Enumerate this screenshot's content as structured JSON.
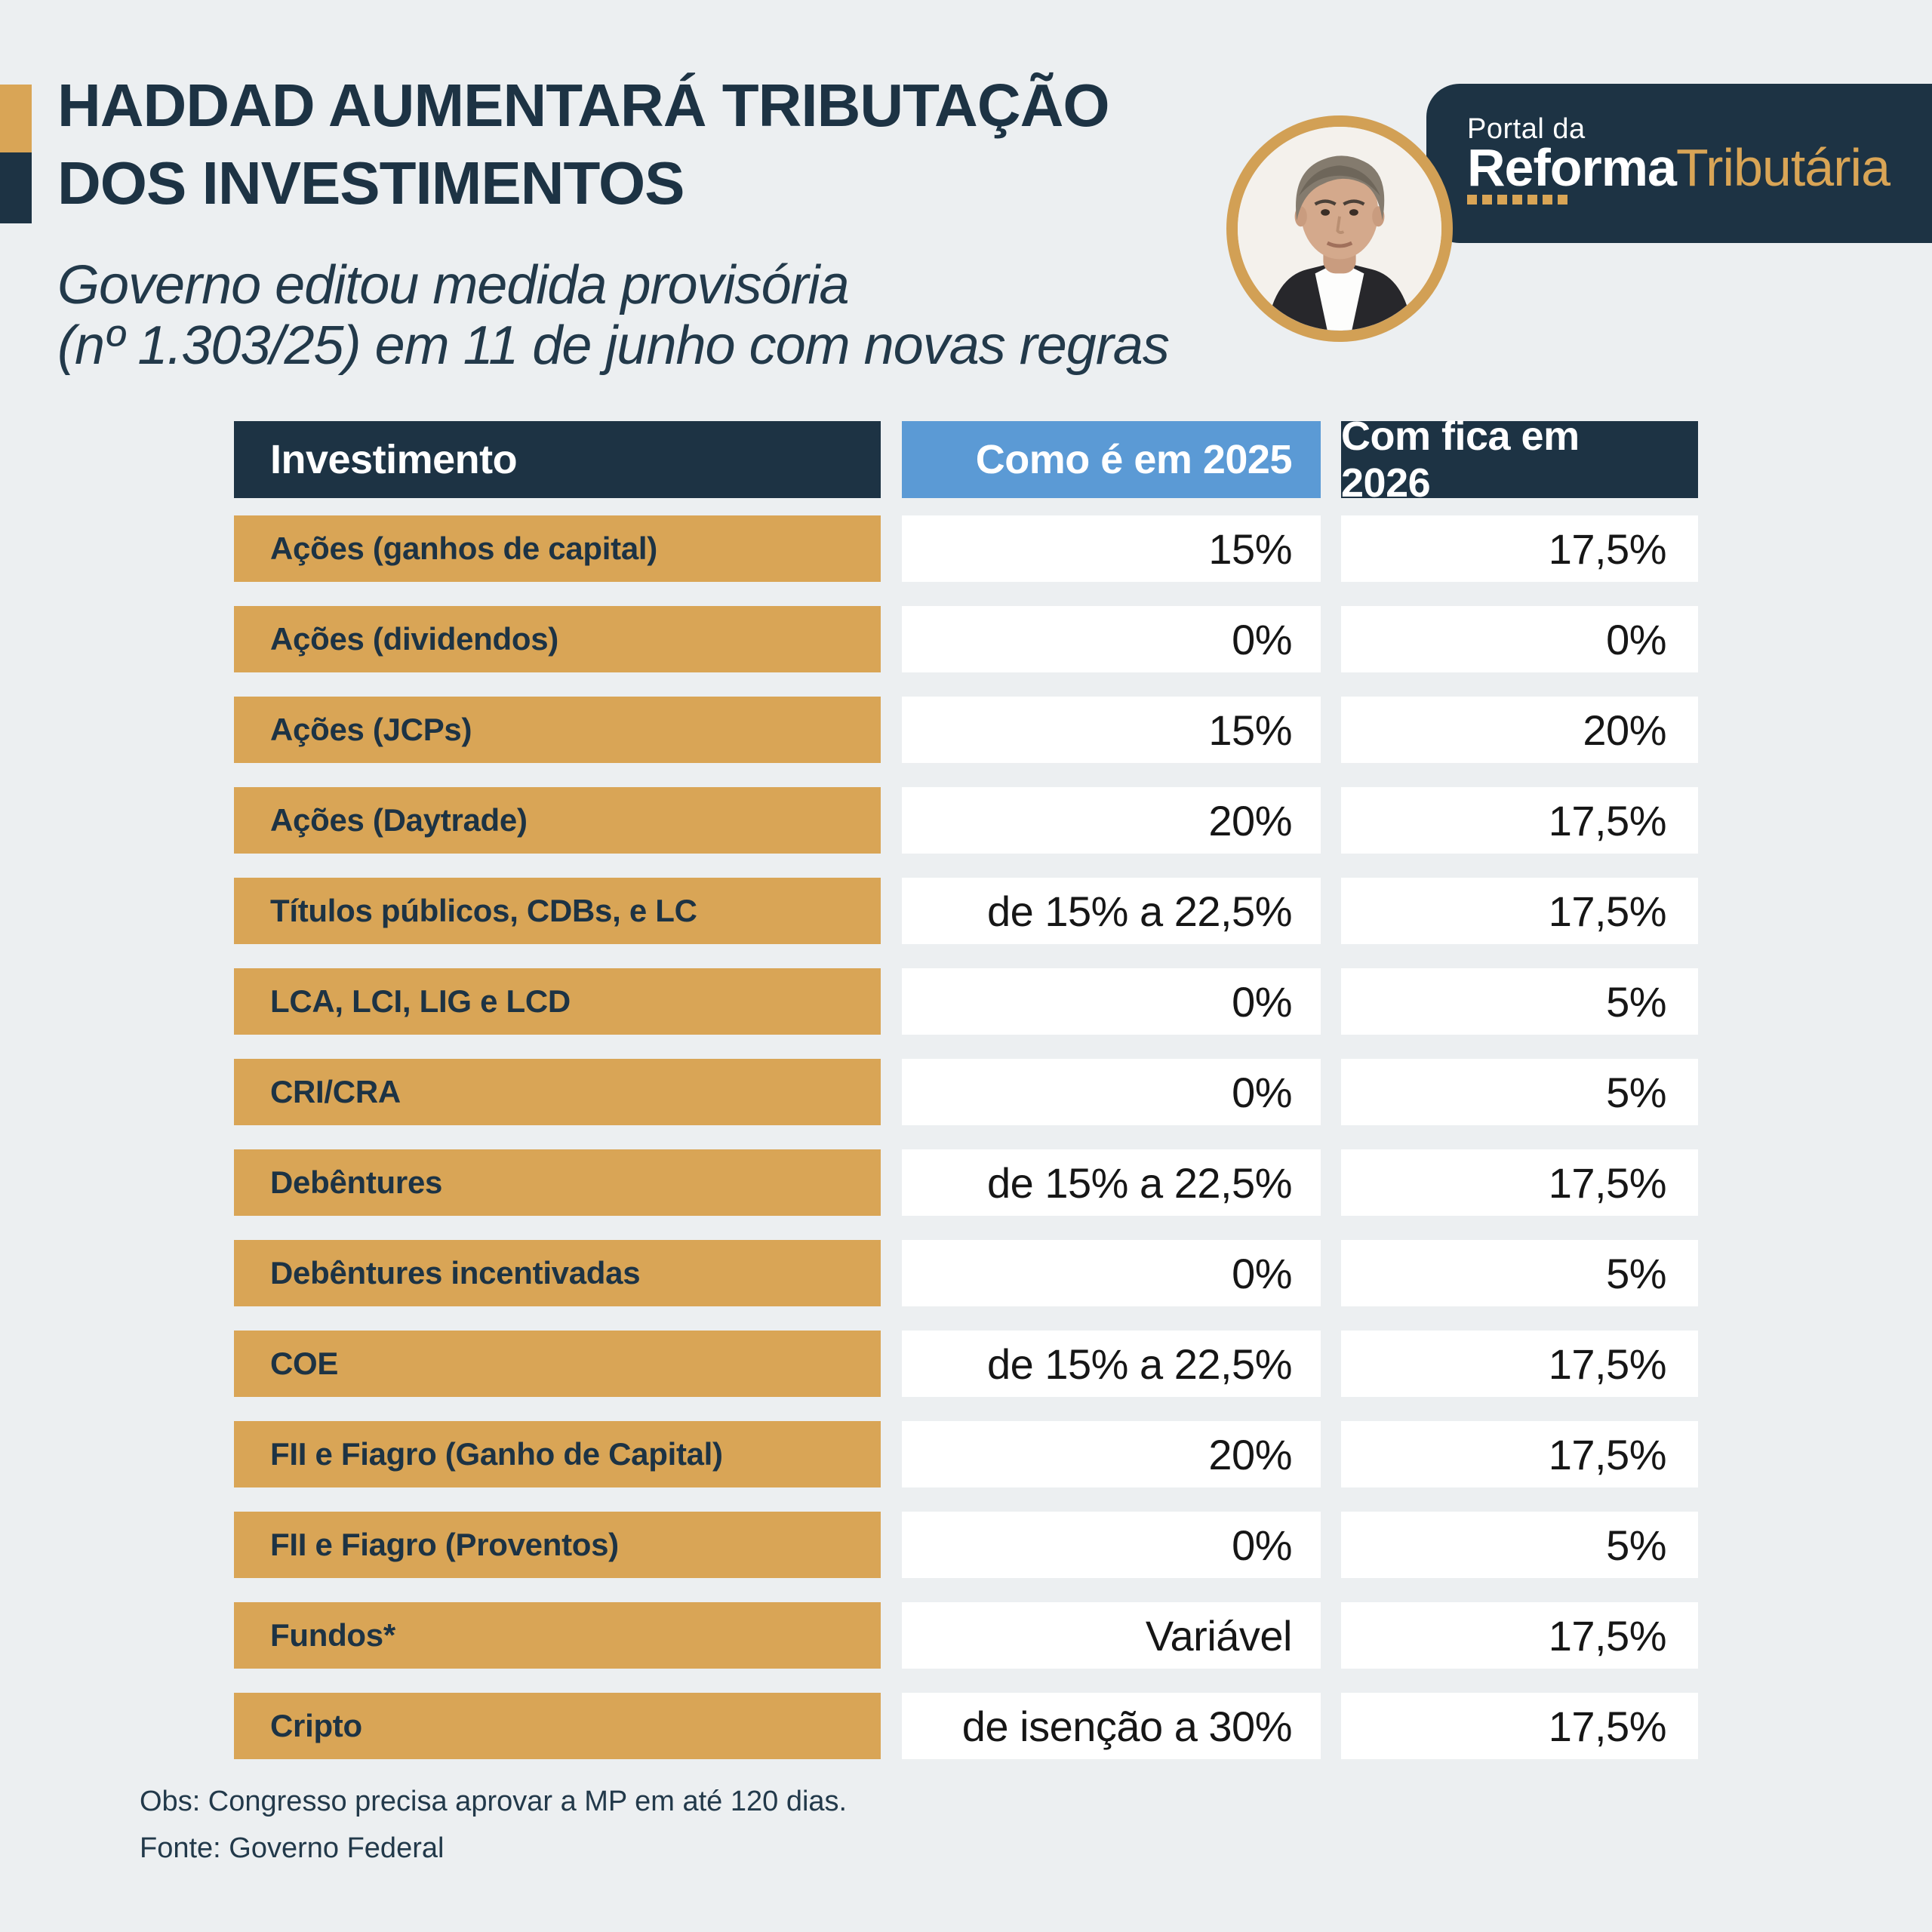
{
  "header": {
    "title_line1": "HADDAD AUMENTARÁ TRIBUTAÇÃO",
    "title_line2": "DOS INVESTIMENTOS",
    "subtitle_line1": "Governo editou medida provisória",
    "subtitle_line2": "(nº 1.303/25) em 11 de junho com novas regras"
  },
  "brand": {
    "kicker": "Portal da",
    "name_primary": "Reforma",
    "name_secondary": "Tributária",
    "portrait_icon": "haddad-portrait-photo"
  },
  "table": {
    "columns": [
      {
        "label": "Investimento"
      },
      {
        "label": "Como é em 2025"
      },
      {
        "label": "Com fica em 2026"
      }
    ],
    "rows": [
      {
        "investment": "Ações (ganhos de capital)",
        "y2025": "15%",
        "y2026": "17,5%"
      },
      {
        "investment": "Ações (dividendos)",
        "y2025": "0%",
        "y2026": "0%"
      },
      {
        "investment": "Ações (JCPs)",
        "y2025": "15%",
        "y2026": "20%"
      },
      {
        "investment": "Ações (Daytrade)",
        "y2025": "20%",
        "y2026": "17,5%"
      },
      {
        "investment": "Títulos públicos, CDBs, e LC",
        "y2025": "de 15% a 22,5%",
        "y2026": "17,5%"
      },
      {
        "investment": "LCA, LCI, LIG e LCD",
        "y2025": "0%",
        "y2026": "5%"
      },
      {
        "investment": "CRI/CRA",
        "y2025": "0%",
        "y2026": "5%"
      },
      {
        "investment": "Debêntures",
        "y2025": "de 15% a 22,5%",
        "y2026": "17,5%"
      },
      {
        "investment": "Debêntures incentivadas",
        "y2025": "0%",
        "y2026": "5%"
      },
      {
        "investment": "COE",
        "y2025": "de 15% a 22,5%",
        "y2026": "17,5%"
      },
      {
        "investment": "FII e Fiagro (Ganho de Capital)",
        "y2025": "20%",
        "y2026": "17,5%"
      },
      {
        "investment": "FII e Fiagro (Proventos)",
        "y2025": "0%",
        "y2026": "5%"
      },
      {
        "investment": "Fundos*",
        "y2025": "Variável",
        "y2026": "17,5%"
      },
      {
        "investment": "Cripto",
        "y2025": "de isenção a 30%",
        "y2026": "17,5%"
      }
    ]
  },
  "footer": {
    "note": "Obs: Congresso precisa aprovar a MP em até 120 dias.",
    "source": "Fonte: Governo Federal"
  },
  "colors": {
    "navy": "#1D3344",
    "gold": "#D9A556",
    "blue": "#5B9AD5",
    "background": "#ECEFF1",
    "value_text": "#161616"
  }
}
